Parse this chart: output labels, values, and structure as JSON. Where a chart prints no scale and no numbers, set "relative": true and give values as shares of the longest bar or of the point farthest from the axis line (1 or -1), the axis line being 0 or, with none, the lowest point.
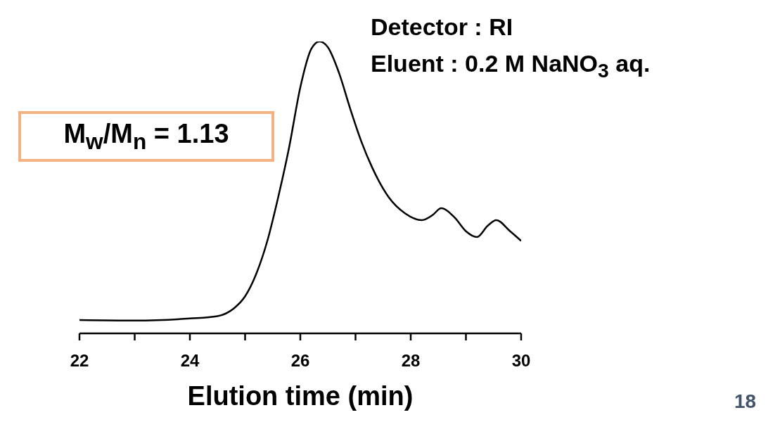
{
  "chart_data": {
    "type": "line",
    "relative": true,
    "xlabel": "Elution time (min)",
    "xlim": [
      22,
      30
    ],
    "xticks": [
      22,
      {
        "value": 23,
        "label": null
      },
      24,
      {
        "value": 25,
        "label": null
      },
      26,
      {
        "value": 27,
        "label": null
      },
      28,
      {
        "value": 29,
        "label": null
      },
      30
    ],
    "x": [
      22,
      23,
      24,
      24.5,
      24.8,
      25,
      25.2,
      25.4,
      25.6,
      25.8,
      26,
      26.2,
      26.35,
      26.5,
      26.7,
      26.9,
      27.1,
      27.3,
      27.6,
      27.9,
      28.2,
      28.4,
      28.55,
      28.8,
      29,
      29.2,
      29.4,
      29.55,
      29.8,
      30
    ],
    "series": [
      {
        "color": "#000000",
        "values": [
          0.046,
          0.044,
          0.051,
          0.059,
          0.086,
          0.127,
          0.203,
          0.315,
          0.467,
          0.64,
          0.843,
          0.975,
          1,
          0.98,
          0.893,
          0.772,
          0.66,
          0.569,
          0.467,
          0.411,
          0.388,
          0.406,
          0.429,
          0.396,
          0.35,
          0.33,
          0.37,
          0.388,
          0.35,
          0.317
        ]
      }
    ],
    "marker": "none",
    "grid": false,
    "annotations": [
      "M$_{w}$/M$_{n}$ = 1.13",
      "Detector : RI",
      "Eluent : 0.2 M NaNO$_{3}$ aq.",
      "18"
    ]
  }
}
